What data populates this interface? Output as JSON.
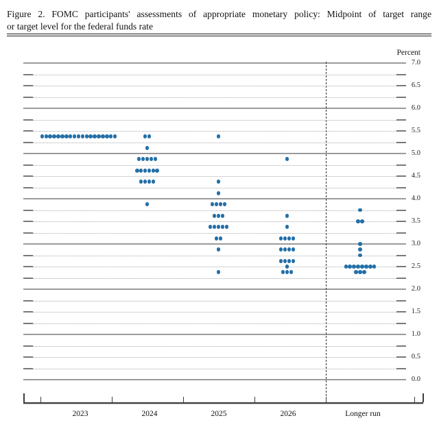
{
  "figure_title": {
    "line1": "Figure 2.  FOMC participants' assessments of appropriate monetary policy:  Midpoint of target range",
    "line2": "or target level for the federal funds rate"
  },
  "chart_data": {
    "type": "scatter",
    "subtype": "fomc-dot-plot",
    "title": "Figure 2. FOMC participants' assessments of appropriate monetary policy: Midpoint of target range or target level for the federal funds rate",
    "ylabel": "Percent",
    "ylim": [
      0.0,
      7.0
    ],
    "y_minor_step": 0.25,
    "y_label_step": 0.5,
    "y_axis_side": "right",
    "grid": "dotted quarter-point lines, solid gray integer lines",
    "dot_color": "#2470a8",
    "separator_between": [
      "2026",
      "Longer run"
    ],
    "categories": [
      "2023",
      "2024",
      "2025",
      "2026",
      "Longer run"
    ],
    "series": [
      {
        "name": "2023",
        "dots": [
          {
            "rate": 5.375,
            "count": 19
          }
        ]
      },
      {
        "name": "2024",
        "dots": [
          {
            "rate": 5.375,
            "count": 2
          },
          {
            "rate": 5.125,
            "count": 1
          },
          {
            "rate": 4.875,
            "count": 5
          },
          {
            "rate": 4.625,
            "count": 6
          },
          {
            "rate": 4.375,
            "count": 4
          },
          {
            "rate": 3.875,
            "count": 1
          }
        ]
      },
      {
        "name": "2025",
        "dots": [
          {
            "rate": 5.375,
            "count": 1
          },
          {
            "rate": 4.375,
            "count": 1
          },
          {
            "rate": 4.125,
            "count": 1
          },
          {
            "rate": 3.875,
            "count": 4
          },
          {
            "rate": 3.625,
            "count": 3
          },
          {
            "rate": 3.375,
            "count": 5
          },
          {
            "rate": 3.125,
            "count": 2
          },
          {
            "rate": 2.875,
            "count": 1
          },
          {
            "rate": 2.375,
            "count": 1
          }
        ]
      },
      {
        "name": "2026",
        "dots": [
          {
            "rate": 4.875,
            "count": 1
          },
          {
            "rate": 3.625,
            "count": 1
          },
          {
            "rate": 3.375,
            "count": 1
          },
          {
            "rate": 3.125,
            "count": 4
          },
          {
            "rate": 2.875,
            "count": 4
          },
          {
            "rate": 2.625,
            "count": 4
          },
          {
            "rate": 2.5,
            "count": 1
          },
          {
            "rate": 2.375,
            "count": 3
          }
        ]
      },
      {
        "name": "Longer run",
        "dots": [
          {
            "rate": 3.75,
            "count": 1
          },
          {
            "rate": 3.5,
            "count": 2
          },
          {
            "rate": 3.0,
            "count": 1
          },
          {
            "rate": 2.875,
            "count": 1
          },
          {
            "rate": 2.75,
            "count": 1
          },
          {
            "rate": 2.5,
            "count": 8
          },
          {
            "rate": 2.375,
            "count": 3
          }
        ]
      }
    ]
  }
}
